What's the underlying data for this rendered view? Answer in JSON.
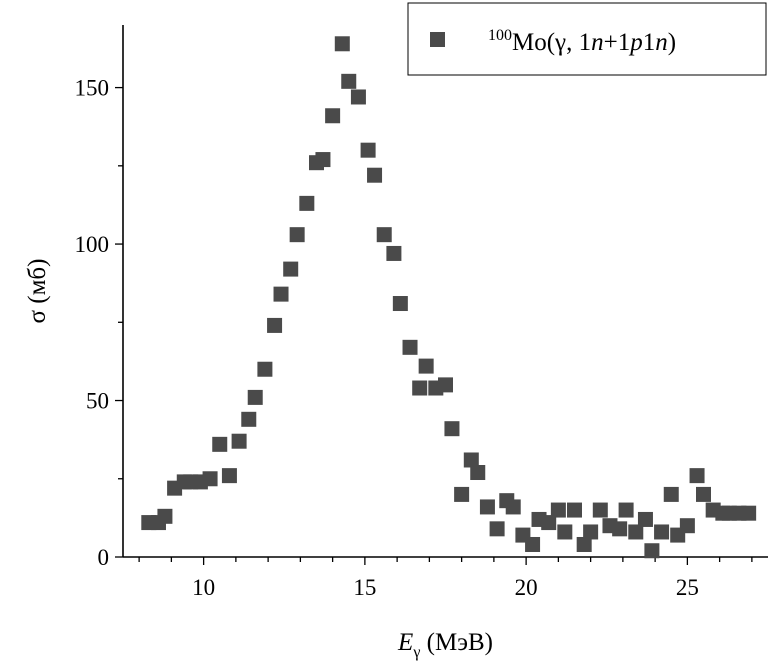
{
  "chart_data": {
    "type": "scatter",
    "title": "",
    "xlabel": {
      "main": "E",
      "sub": "γ",
      "unit": " (МэВ)"
    },
    "ylabel": "σ (мб)",
    "xlim": [
      7.5,
      27.5
    ],
    "ylim": [
      0,
      170
    ],
    "xticks": [
      10,
      15,
      20,
      25
    ],
    "yticks": [
      0,
      50,
      100,
      150
    ],
    "x_minor_step": 1,
    "y_minor_step": 25,
    "grid": false,
    "legend_position": "top-right",
    "marker_color": "#4a4a4a",
    "legend": {
      "mass": "100",
      "element": "Mo",
      "reaction_prefix": "(γ, 1",
      "n1": "n",
      "mid": "+1",
      "p": "p",
      "one": "1",
      "n2": "n",
      "close": ")"
    },
    "series": [
      {
        "name": "100Mo(γ, 1n+1p1n)",
        "x": [
          8.3,
          8.6,
          8.8,
          9.1,
          9.4,
          9.6,
          9.9,
          10.2,
          10.5,
          10.8,
          11.1,
          11.4,
          11.6,
          11.9,
          12.2,
          12.4,
          12.7,
          12.9,
          13.2,
          13.5,
          13.7,
          14.0,
          14.3,
          14.5,
          14.8,
          15.1,
          15.3,
          15.6,
          15.9,
          16.1,
          16.4,
          16.7,
          16.9,
          17.2,
          17.5,
          17.7,
          18.0,
          18.3,
          18.5,
          18.8,
          19.1,
          19.4,
          19.6,
          19.9,
          20.2,
          20.4,
          20.7,
          21.0,
          21.2,
          21.5,
          21.8,
          22.0,
          22.3,
          22.6,
          22.9,
          23.1,
          23.4,
          23.7,
          23.9,
          24.2,
          24.5,
          24.7,
          25.0,
          25.3,
          25.5,
          25.8,
          26.1,
          26.3,
          26.6,
          26.9
        ],
        "y": [
          11,
          11,
          13,
          22,
          24,
          24,
          24,
          25,
          36,
          26,
          37,
          44,
          51,
          60,
          74,
          84,
          92,
          103,
          113,
          126,
          127,
          141,
          164,
          152,
          147,
          130,
          122,
          103,
          97,
          81,
          67,
          54,
          61,
          54,
          55,
          41,
          20,
          31,
          27,
          16,
          9,
          18,
          16,
          7,
          4,
          12,
          11,
          15,
          8,
          15,
          4,
          8,
          15,
          10,
          9,
          15,
          8,
          12,
          2,
          8,
          20,
          7,
          10,
          26,
          20,
          15,
          14,
          14,
          14,
          14
        ]
      }
    ]
  }
}
